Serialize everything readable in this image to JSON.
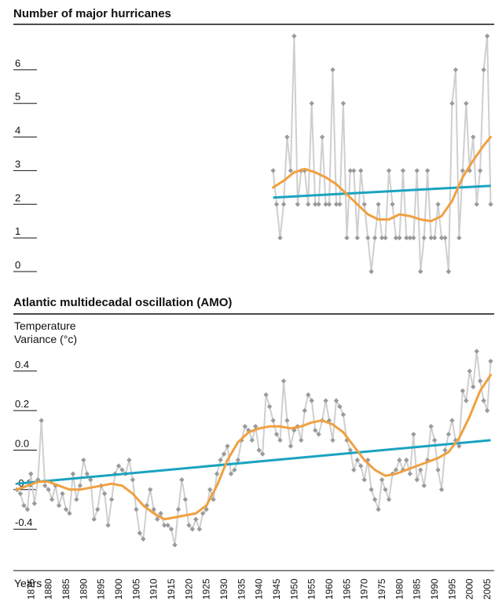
{
  "colors": {
    "raw": "#cfcfcf",
    "marker": "#9a9a9a",
    "smooth": "#f0a040",
    "trend": "#1aa3c0",
    "rule": "#111111"
  },
  "chart_data": [
    {
      "type": "line",
      "title": "Number of major hurricanes",
      "ylabel": "",
      "xlim": [
        1870,
        2007
      ],
      "ylim": [
        0,
        7
      ],
      "yticks": [
        0,
        1,
        2,
        3,
        4,
        5,
        6
      ],
      "ytick_labels": [
        "0",
        "1",
        "2",
        "3",
        "4",
        "5",
        "6"
      ],
      "grid": false,
      "series": [
        {
          "kind": "raw",
          "x": [
            1944,
            1945,
            1946,
            1947,
            1948,
            1949,
            1950,
            1951,
            1952,
            1953,
            1954,
            1955,
            1956,
            1957,
            1958,
            1959,
            1960,
            1961,
            1962,
            1963,
            1964,
            1965,
            1966,
            1967,
            1968,
            1969,
            1970,
            1971,
            1972,
            1973,
            1974,
            1975,
            1976,
            1977,
            1978,
            1979,
            1980,
            1981,
            1982,
            1983,
            1984,
            1985,
            1986,
            1987,
            1988,
            1989,
            1990,
            1991,
            1992,
            1993,
            1994,
            1995,
            1996,
            1997,
            1998,
            1999,
            2000,
            2001,
            2002,
            2003,
            2004,
            2005,
            2006
          ],
          "y": [
            3,
            2,
            1,
            2,
            4,
            3,
            7,
            2,
            3,
            3,
            2,
            5,
            2,
            2,
            4,
            2,
            2,
            6,
            2,
            2,
            5,
            1,
            3,
            3,
            1,
            3,
            2,
            1,
            0,
            1,
            2,
            1,
            1,
            3,
            2,
            1,
            1,
            3,
            1,
            1,
            1,
            3,
            0,
            1,
            3,
            1,
            1,
            2,
            1,
            1,
            0,
            5,
            6,
            1,
            3,
            5,
            3,
            4,
            2,
            3,
            6,
            7,
            2
          ]
        },
        {
          "kind": "smooth",
          "x": [
            1944,
            1947,
            1950,
            1953,
            1956,
            1959,
            1962,
            1965,
            1968,
            1971,
            1974,
            1977,
            1980,
            1983,
            1986,
            1989,
            1992,
            1995,
            1998,
            2001,
            2004,
            2006
          ],
          "y": [
            2.5,
            2.7,
            2.95,
            3.05,
            2.95,
            2.8,
            2.6,
            2.3,
            2.0,
            1.7,
            1.55,
            1.55,
            1.7,
            1.65,
            1.55,
            1.5,
            1.65,
            2.1,
            2.8,
            3.3,
            3.75,
            4.0
          ]
        },
        {
          "kind": "trend",
          "x": [
            1944,
            2006
          ],
          "y": [
            2.2,
            2.55
          ]
        }
      ]
    },
    {
      "type": "line",
      "title": "Atlantic multidecadal oscillation (AMO)",
      "ylabel": "Temperature Variance (°c)",
      "xlabel": "Years",
      "xlim": [
        1870,
        2007
      ],
      "ylim": [
        -0.57,
        0.55
      ],
      "yticks": [
        -0.4,
        -0.2,
        0.0,
        0.2,
        0.4
      ],
      "ytick_labels": [
        "-0.4",
        "-0.2",
        "0.0",
        "0.2",
        "0.4"
      ],
      "xticks": [
        1875,
        1880,
        1885,
        1890,
        1895,
        1900,
        1905,
        1910,
        1915,
        1920,
        1925,
        1930,
        1935,
        1940,
        1945,
        1950,
        1955,
        1960,
        1965,
        1970,
        1975,
        1980,
        1985,
        1990,
        1995,
        2000,
        2005
      ],
      "xtick_labels": [
        "1875",
        "1880",
        "1885",
        "1890",
        "1895",
        "1900",
        "1905",
        "1910",
        "1915",
        "1920",
        "1925",
        "1930",
        "1935",
        "1940",
        "1945",
        "1950",
        "1955",
        "1960",
        "1965",
        "1970",
        "1975",
        "1980",
        "1985",
        "1990",
        "1995",
        "2000",
        "2005"
      ],
      "grid": false,
      "series": [
        {
          "kind": "raw",
          "x": [
            1871,
            1872,
            1873,
            1874,
            1875,
            1876,
            1877,
            1878,
            1879,
            1880,
            1881,
            1882,
            1883,
            1884,
            1885,
            1886,
            1887,
            1888,
            1889,
            1890,
            1891,
            1892,
            1893,
            1894,
            1895,
            1896,
            1897,
            1898,
            1899,
            1900,
            1901,
            1902,
            1903,
            1904,
            1905,
            1906,
            1907,
            1908,
            1909,
            1910,
            1911,
            1912,
            1913,
            1914,
            1915,
            1916,
            1917,
            1918,
            1919,
            1920,
            1921,
            1922,
            1923,
            1924,
            1925,
            1926,
            1927,
            1928,
            1929,
            1930,
            1931,
            1932,
            1933,
            1934,
            1935,
            1936,
            1937,
            1938,
            1939,
            1940,
            1941,
            1942,
            1943,
            1944,
            1945,
            1946,
            1947,
            1948,
            1949,
            1950,
            1951,
            1952,
            1953,
            1954,
            1955,
            1956,
            1957,
            1958,
            1959,
            1960,
            1961,
            1962,
            1963,
            1964,
            1965,
            1966,
            1967,
            1968,
            1969,
            1970,
            1971,
            1972,
            1973,
            1974,
            1975,
            1976,
            1977,
            1978,
            1979,
            1980,
            1981,
            1982,
            1983,
            1984,
            1985,
            1986,
            1987,
            1988,
            1989,
            1990,
            1991,
            1992,
            1993,
            1994,
            1995,
            1996,
            1997,
            1998,
            1999,
            2000,
            2001,
            2002,
            2003,
            2004,
            2005,
            2006
          ],
          "y": [
            -0.2,
            -0.22,
            -0.28,
            -0.3,
            -0.12,
            -0.27,
            -0.15,
            0.15,
            -0.18,
            -0.2,
            -0.25,
            -0.18,
            -0.28,
            -0.22,
            -0.3,
            -0.32,
            -0.12,
            -0.25,
            -0.18,
            -0.05,
            -0.12,
            -0.15,
            -0.35,
            -0.3,
            -0.18,
            -0.22,
            -0.38,
            -0.25,
            -0.12,
            -0.08,
            -0.1,
            -0.12,
            -0.05,
            -0.15,
            -0.3,
            -0.42,
            -0.45,
            -0.28,
            -0.2,
            -0.3,
            -0.35,
            -0.32,
            -0.38,
            -0.38,
            -0.4,
            -0.48,
            -0.3,
            -0.15,
            -0.25,
            -0.38,
            -0.4,
            -0.35,
            -0.4,
            -0.32,
            -0.3,
            -0.2,
            -0.25,
            -0.12,
            -0.05,
            -0.02,
            0.02,
            -0.12,
            -0.1,
            -0.05,
            0.05,
            0.12,
            0.1,
            0.05,
            0.12,
            0.0,
            -0.02,
            0.28,
            0.22,
            0.15,
            0.08,
            0.05,
            0.35,
            0.15,
            0.02,
            0.1,
            0.12,
            0.05,
            0.2,
            0.28,
            0.25,
            0.1,
            0.08,
            0.15,
            0.25,
            0.15,
            0.05,
            0.25,
            0.22,
            0.18,
            0.05,
            0.0,
            -0.1,
            -0.05,
            -0.08,
            -0.15,
            -0.05,
            -0.2,
            -0.25,
            -0.3,
            -0.15,
            -0.2,
            -0.25,
            -0.12,
            -0.1,
            -0.05,
            -0.1,
            -0.05,
            -0.12,
            0.08,
            -0.15,
            -0.1,
            -0.18,
            -0.05,
            0.12,
            0.05,
            -0.1,
            -0.2,
            0.0,
            0.08,
            0.15,
            0.05,
            0.02,
            0.3,
            0.25,
            0.4,
            0.32,
            0.5,
            0.35,
            0.25,
            0.2,
            0.45
          ]
        },
        {
          "kind": "smooth",
          "x": [
            1871,
            1874,
            1877,
            1880,
            1883,
            1886,
            1889,
            1892,
            1895,
            1898,
            1901,
            1904,
            1907,
            1910,
            1913,
            1916,
            1919,
            1922,
            1925,
            1928,
            1931,
            1934,
            1937,
            1940,
            1943,
            1946,
            1949,
            1952,
            1955,
            1958,
            1961,
            1964,
            1967,
            1970,
            1973,
            1976,
            1979,
            1982,
            1985,
            1988,
            1991,
            1994,
            1997,
            2000,
            2003,
            2006
          ],
          "y": [
            -0.2,
            -0.18,
            -0.16,
            -0.16,
            -0.18,
            -0.2,
            -0.2,
            -0.19,
            -0.18,
            -0.17,
            -0.18,
            -0.22,
            -0.28,
            -0.32,
            -0.35,
            -0.34,
            -0.33,
            -0.32,
            -0.28,
            -0.18,
            -0.05,
            0.04,
            0.09,
            0.11,
            0.12,
            0.12,
            0.11,
            0.12,
            0.14,
            0.15,
            0.13,
            0.09,
            0.02,
            -0.05,
            -0.1,
            -0.13,
            -0.12,
            -0.1,
            -0.08,
            -0.06,
            -0.04,
            -0.01,
            0.06,
            0.17,
            0.3,
            0.38
          ]
        },
        {
          "kind": "trend",
          "x": [
            1871,
            2006
          ],
          "y": [
            -0.17,
            0.05
          ]
        }
      ]
    }
  ]
}
